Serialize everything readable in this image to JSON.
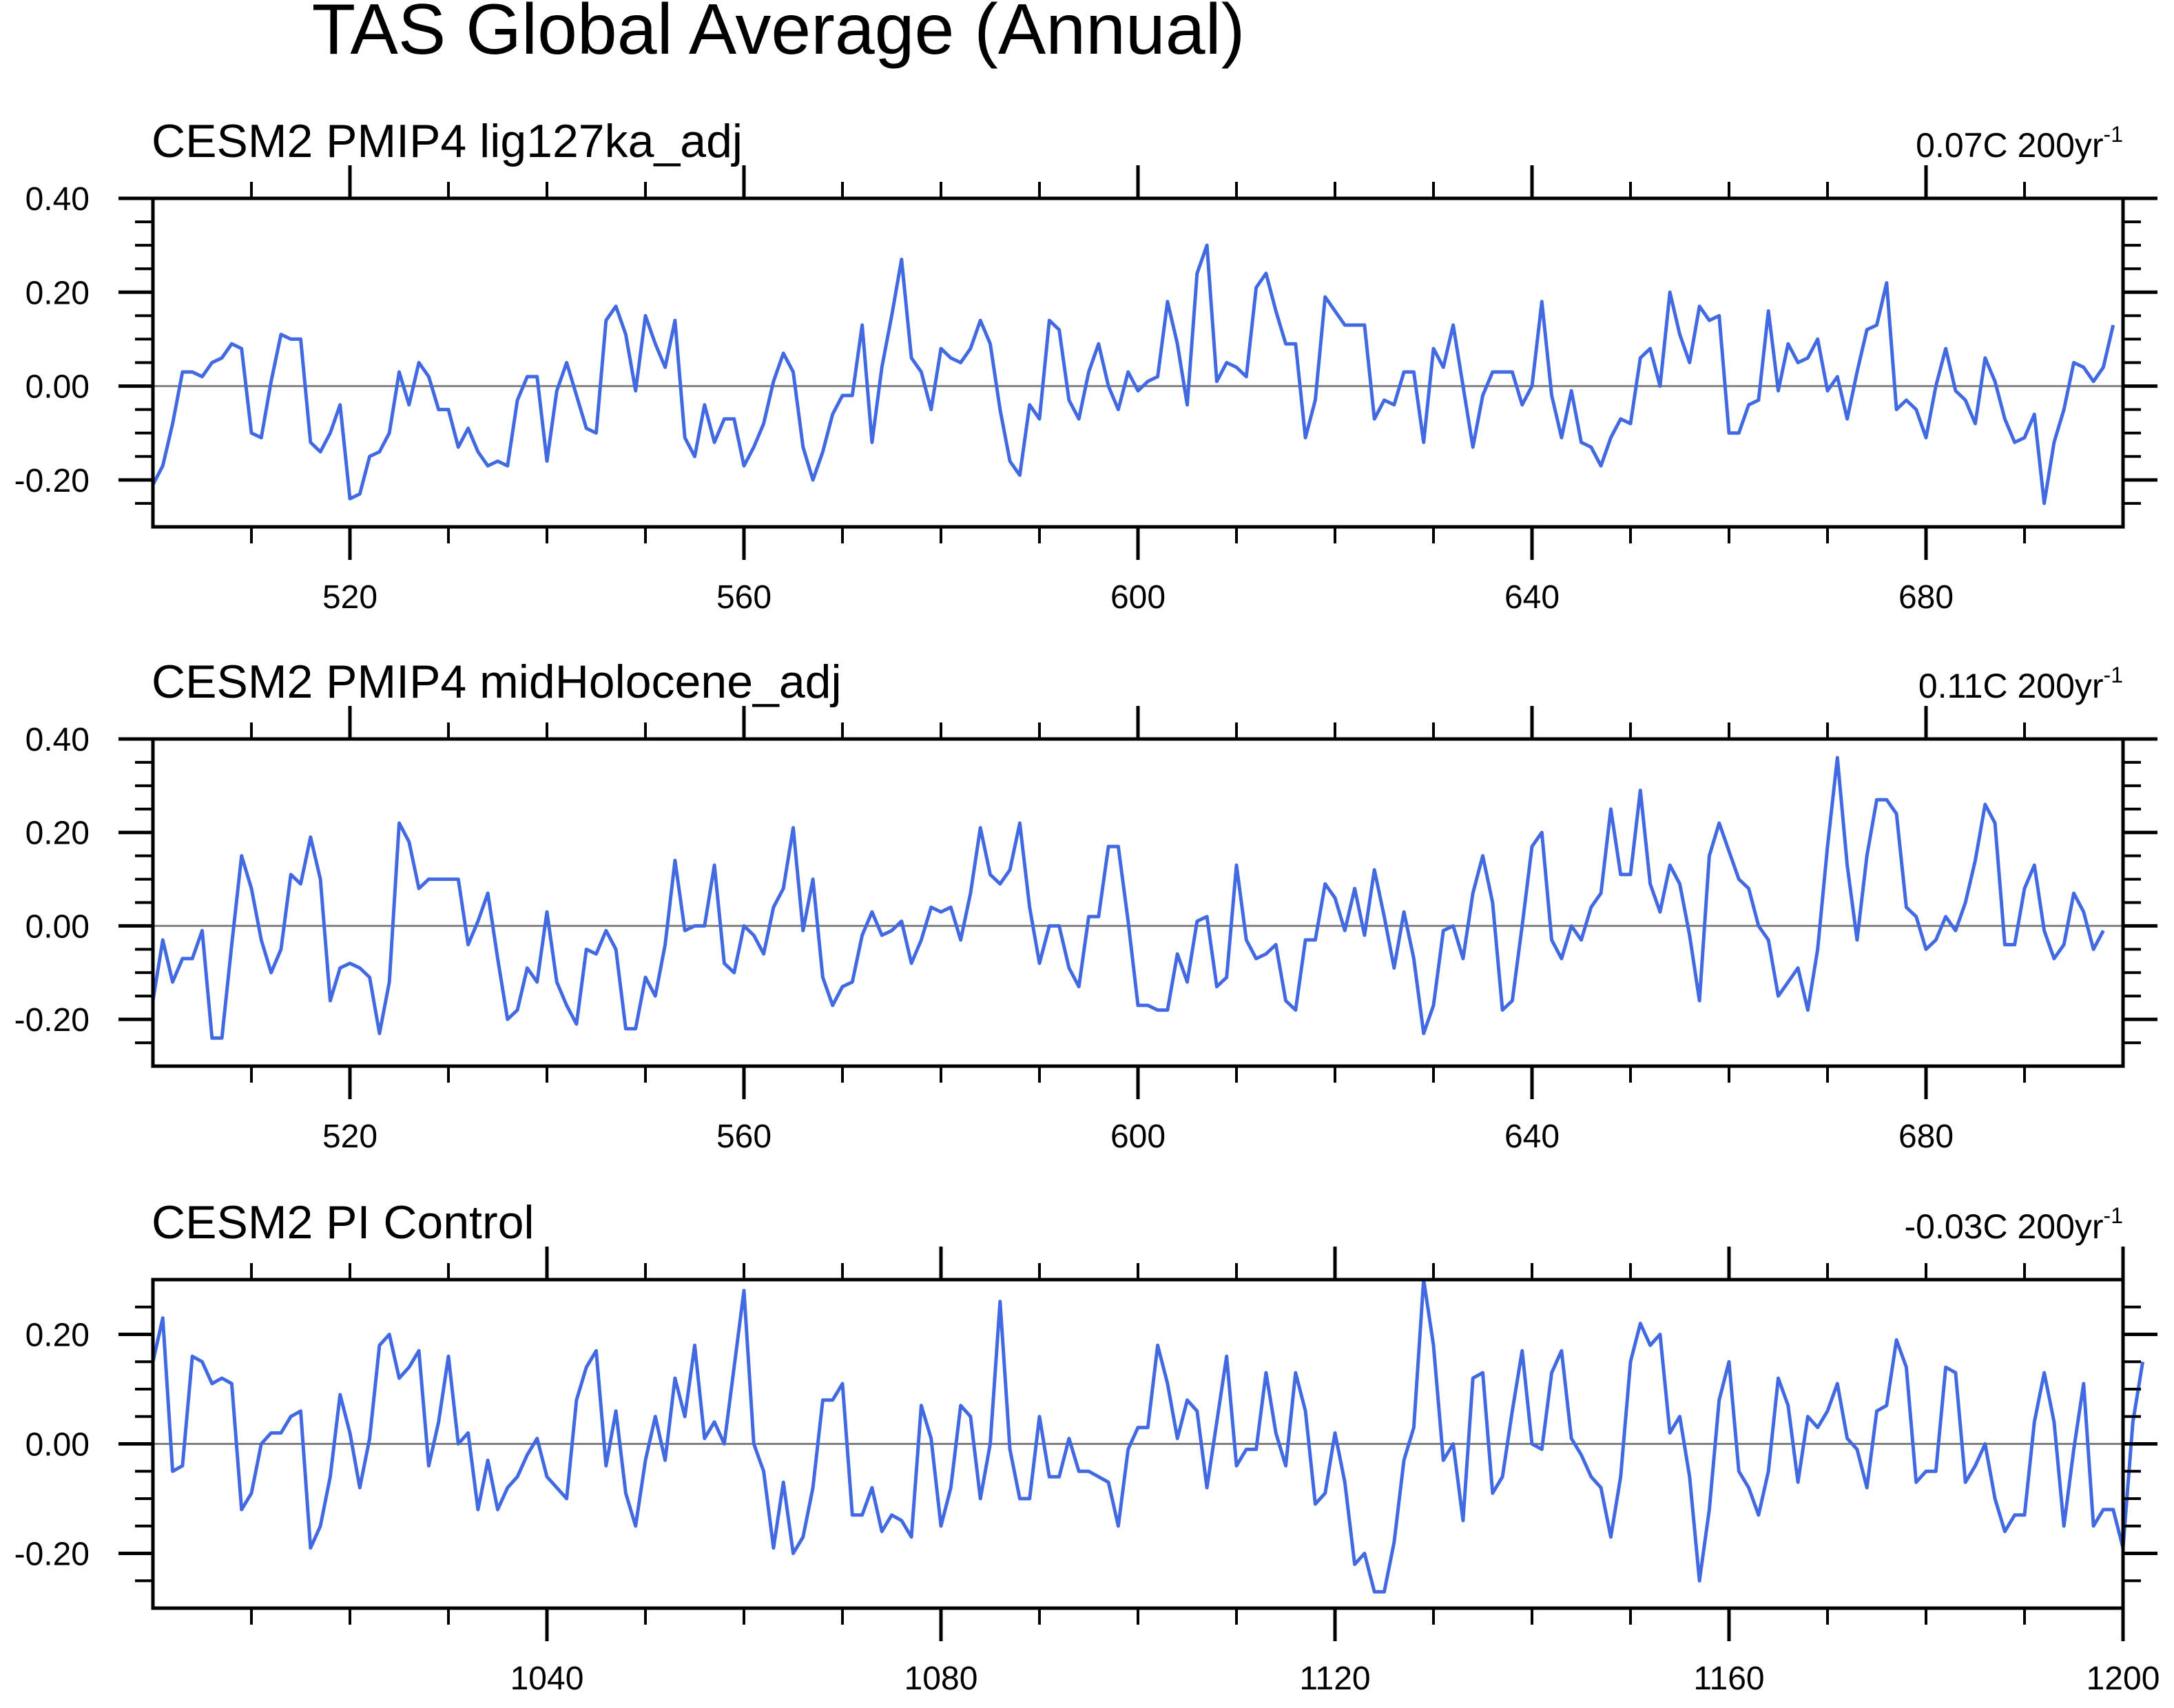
{
  "figure": {
    "title": "TAS Global Average (Annual)"
  },
  "colors": {
    "line": "#4169e1",
    "zero_line": "#808080",
    "axes": "#000000",
    "background": "#ffffff"
  },
  "chart_data": [
    {
      "type": "line",
      "title": "CESM2 PMIP4 lig127ka_adj",
      "trend_value": "0.07C 200yr",
      "trend_exp": "-1",
      "xlabel": "",
      "ylabel": "",
      "xlim": [
        500,
        700
      ],
      "ylim": [
        -0.3,
        0.4
      ],
      "x_ticks": [
        520,
        560,
        600,
        640,
        680
      ],
      "x_tick_labels": [
        "520",
        "560",
        "600",
        "640",
        "680"
      ],
      "x_minor_step": 10,
      "y_ticks": [
        0.4,
        0.2,
        0.0,
        -0.2
      ],
      "y_tick_labels": [
        "0.40",
        "0.20",
        "0.00",
        "-0.20"
      ],
      "y_minor_step": 0.05,
      "x_start": 500,
      "x_step": 1,
      "values": [
        -0.21,
        -0.17,
        -0.08,
        0.03,
        0.03,
        0.02,
        0.05,
        0.06,
        0.09,
        0.08,
        -0.1,
        -0.11,
        0.01,
        0.11,
        0.1,
        0.1,
        -0.12,
        -0.14,
        -0.1,
        -0.04,
        -0.24,
        -0.23,
        -0.15,
        -0.14,
        -0.1,
        0.03,
        -0.04,
        0.05,
        0.02,
        -0.05,
        -0.05,
        -0.13,
        -0.09,
        -0.14,
        -0.17,
        -0.16,
        -0.17,
        -0.03,
        0.02,
        0.02,
        -0.16,
        -0.01,
        0.05,
        -0.02,
        -0.09,
        -0.1,
        0.14,
        0.17,
        0.11,
        -0.01,
        0.15,
        0.09,
        0.04,
        0.14,
        -0.11,
        -0.15,
        -0.04,
        -0.12,
        -0.07,
        -0.07,
        -0.17,
        -0.13,
        -0.08,
        0.01,
        0.07,
        0.03,
        -0.13,
        -0.2,
        -0.14,
        -0.06,
        -0.02,
        -0.02,
        0.13,
        -0.12,
        0.04,
        0.15,
        0.27,
        0.06,
        0.03,
        -0.05,
        0.08,
        0.06,
        0.05,
        0.08,
        0.14,
        0.09,
        -0.05,
        -0.16,
        -0.19,
        -0.04,
        -0.07,
        0.14,
        0.12,
        -0.03,
        -0.07,
        0.03,
        0.09,
        0.0,
        -0.05,
        0.03,
        -0.01,
        0.01,
        0.02,
        0.18,
        0.09,
        -0.04,
        0.24,
        0.3,
        0.01,
        0.05,
        0.04,
        0.02,
        0.21,
        0.24,
        0.16,
        0.09,
        0.09,
        -0.11,
        -0.03,
        0.19,
        0.16,
        0.13,
        0.13,
        0.13,
        -0.07,
        -0.03,
        -0.04,
        0.03,
        0.03,
        -0.12,
        0.08,
        0.04,
        0.13,
        0.0,
        -0.13,
        -0.02,
        0.03,
        0.03,
        0.03,
        -0.04,
        0.0,
        0.18,
        -0.02,
        -0.11,
        -0.01,
        -0.12,
        -0.13,
        -0.17,
        -0.11,
        -0.07,
        -0.08,
        0.06,
        0.08,
        0.0,
        0.2,
        0.11,
        0.05,
        0.17,
        0.14,
        0.15,
        -0.1,
        -0.1,
        -0.04,
        -0.03,
        0.16,
        -0.01,
        0.09,
        0.05,
        0.06,
        0.1,
        -0.01,
        0.02,
        -0.07,
        0.03,
        0.12,
        0.13,
        0.22,
        -0.05,
        -0.03,
        -0.05,
        -0.11,
        0.0,
        0.08,
        -0.01,
        -0.03,
        -0.08,
        0.06,
        0.01,
        -0.07,
        -0.12,
        -0.11,
        -0.06,
        -0.25,
        -0.12,
        -0.05,
        0.05,
        0.04,
        0.01,
        0.04,
        0.13
      ]
    },
    {
      "type": "line",
      "title": "CESM2 PMIP4 midHolocene_adj",
      "trend_value": "0.11C 200yr",
      "trend_exp": "-1",
      "xlabel": "",
      "ylabel": "",
      "xlim": [
        500,
        700
      ],
      "ylim": [
        -0.3,
        0.4
      ],
      "x_ticks": [
        520,
        560,
        600,
        640,
        680
      ],
      "x_tick_labels": [
        "520",
        "560",
        "600",
        "640",
        "680"
      ],
      "x_minor_step": 10,
      "y_ticks": [
        0.4,
        0.2,
        0.0,
        -0.2
      ],
      "y_tick_labels": [
        "0.40",
        "0.20",
        "0.00",
        "-0.20"
      ],
      "y_minor_step": 0.05,
      "x_start": 500,
      "x_step": 1,
      "values": [
        -0.16,
        -0.03,
        -0.12,
        -0.07,
        -0.07,
        -0.01,
        -0.24,
        -0.24,
        -0.04,
        0.15,
        0.08,
        -0.03,
        -0.1,
        -0.05,
        0.11,
        0.09,
        0.19,
        0.1,
        -0.16,
        -0.09,
        -0.08,
        -0.09,
        -0.11,
        -0.23,
        -0.12,
        0.22,
        0.18,
        0.08,
        0.1,
        0.1,
        0.1,
        0.1,
        -0.04,
        0.01,
        0.07,
        -0.07,
        -0.2,
        -0.18,
        -0.09,
        -0.12,
        0.03,
        -0.12,
        -0.17,
        -0.21,
        -0.05,
        -0.06,
        -0.01,
        -0.05,
        -0.22,
        -0.22,
        -0.11,
        -0.15,
        -0.04,
        0.14,
        -0.01,
        0.0,
        0.0,
        0.13,
        -0.08,
        -0.1,
        0.0,
        -0.02,
        -0.06,
        0.04,
        0.08,
        0.21,
        -0.01,
        0.1,
        -0.11,
        -0.17,
        -0.13,
        -0.12,
        -0.02,
        0.03,
        -0.02,
        -0.01,
        0.01,
        -0.08,
        -0.03,
        0.04,
        0.03,
        0.04,
        -0.03,
        0.07,
        0.21,
        0.11,
        0.09,
        0.12,
        0.22,
        0.04,
        -0.08,
        0.0,
        0.0,
        -0.09,
        -0.13,
        0.02,
        0.02,
        0.17,
        0.17,
        0.01,
        -0.17,
        -0.17,
        -0.18,
        -0.18,
        -0.06,
        -0.12,
        0.01,
        0.02,
        -0.13,
        -0.11,
        0.13,
        -0.03,
        -0.07,
        -0.06,
        -0.04,
        -0.16,
        -0.18,
        -0.03,
        -0.03,
        0.09,
        0.06,
        -0.01,
        0.08,
        -0.02,
        0.12,
        0.02,
        -0.09,
        0.03,
        -0.07,
        -0.23,
        -0.17,
        -0.01,
        0.0,
        -0.07,
        0.07,
        0.15,
        0.05,
        -0.18,
        -0.16,
        0.0,
        0.17,
        0.2,
        -0.03,
        -0.07,
        0.0,
        -0.03,
        0.04,
        0.07,
        0.25,
        0.11,
        0.11,
        0.29,
        0.09,
        0.03,
        0.13,
        0.09,
        -0.02,
        -0.16,
        0.15,
        0.22,
        0.16,
        0.1,
        0.08,
        0.0,
        -0.03,
        -0.15,
        -0.12,
        -0.09,
        -0.18,
        -0.05,
        0.17,
        0.36,
        0.13,
        -0.03,
        0.15,
        0.27,
        0.27,
        0.24,
        0.04,
        0.02,
        -0.05,
        -0.03,
        0.02,
        -0.01,
        0.05,
        0.14,
        0.26,
        0.22,
        -0.04,
        -0.04,
        0.08,
        0.13,
        -0.01,
        -0.07,
        -0.04,
        0.07,
        0.03,
        -0.05,
        -0.01
      ]
    },
    {
      "type": "line",
      "title": "CESM2 PI Control",
      "trend_value": "-0.03C 200yr",
      "trend_exp": "-1",
      "xlabel": "",
      "ylabel": "",
      "xlim": [
        1000,
        1200
      ],
      "ylim": [
        -0.3,
        0.3
      ],
      "x_ticks": [
        1040,
        1080,
        1120,
        1160,
        1200
      ],
      "x_tick_labels": [
        "1040",
        "1080",
        "1120",
        "1160",
        "1200"
      ],
      "x_minor_step": 10,
      "y_ticks": [
        0.2,
        0.0,
        -0.2
      ],
      "y_tick_labels": [
        "0.20",
        "0.00",
        "-0.20"
      ],
      "y_minor_step": 0.05,
      "x_start": 1000,
      "x_step": 1,
      "values": [
        0.15,
        0.23,
        -0.05,
        -0.04,
        0.16,
        0.15,
        0.11,
        0.12,
        0.11,
        -0.12,
        -0.09,
        0.0,
        0.02,
        0.02,
        0.05,
        0.06,
        -0.19,
        -0.15,
        -0.06,
        0.09,
        0.02,
        -0.08,
        0.01,
        0.18,
        0.2,
        0.12,
        0.14,
        0.17,
        -0.04,
        0.04,
        0.16,
        0.0,
        0.02,
        -0.12,
        -0.03,
        -0.12,
        -0.08,
        -0.06,
        -0.02,
        0.01,
        -0.06,
        -0.08,
        -0.1,
        0.08,
        0.14,
        0.17,
        -0.04,
        0.06,
        -0.09,
        -0.15,
        -0.03,
        0.05,
        -0.03,
        0.12,
        0.05,
        0.18,
        0.01,
        0.04,
        0.0,
        0.14,
        0.28,
        0.0,
        -0.05,
        -0.19,
        -0.07,
        -0.2,
        -0.17,
        -0.08,
        0.08,
        0.08,
        0.11,
        -0.13,
        -0.13,
        -0.08,
        -0.16,
        -0.13,
        -0.14,
        -0.17,
        0.07,
        0.01,
        -0.15,
        -0.08,
        0.07,
        0.05,
        -0.1,
        0.0,
        0.26,
        -0.01,
        -0.1,
        -0.1,
        0.05,
        -0.06,
        -0.06,
        0.01,
        -0.05,
        -0.05,
        -0.06,
        -0.07,
        -0.15,
        -0.01,
        0.03,
        0.03,
        0.18,
        0.11,
        0.01,
        0.08,
        0.06,
        -0.08,
        0.04,
        0.16,
        -0.04,
        -0.01,
        -0.01,
        0.13,
        0.02,
        -0.04,
        0.13,
        0.06,
        -0.11,
        -0.09,
        0.02,
        -0.07,
        -0.22,
        -0.2,
        -0.27,
        -0.27,
        -0.18,
        -0.03,
        0.03,
        0.3,
        0.18,
        -0.03,
        0.0,
        -0.14,
        0.12,
        0.13,
        -0.09,
        -0.06,
        0.06,
        0.17,
        0.0,
        -0.01,
        0.13,
        0.17,
        0.01,
        -0.02,
        -0.06,
        -0.08,
        -0.17,
        -0.06,
        0.15,
        0.22,
        0.18,
        0.2,
        0.02,
        0.05,
        -0.06,
        -0.25,
        -0.12,
        0.08,
        0.15,
        -0.05,
        -0.08,
        -0.13,
        -0.05,
        0.12,
        0.07,
        -0.07,
        0.05,
        0.03,
        0.06,
        0.11,
        0.01,
        -0.01,
        -0.08,
        0.06,
        0.07,
        0.19,
        0.14,
        -0.07,
        -0.05,
        -0.05,
        0.14,
        0.13,
        -0.07,
        -0.04,
        0.0,
        -0.1,
        -0.16,
        -0.13,
        -0.13,
        0.04,
        0.13,
        0.04,
        -0.15,
        -0.01,
        0.11,
        -0.15,
        -0.12,
        -0.12,
        -0.19,
        0.04,
        0.15
      ]
    }
  ]
}
